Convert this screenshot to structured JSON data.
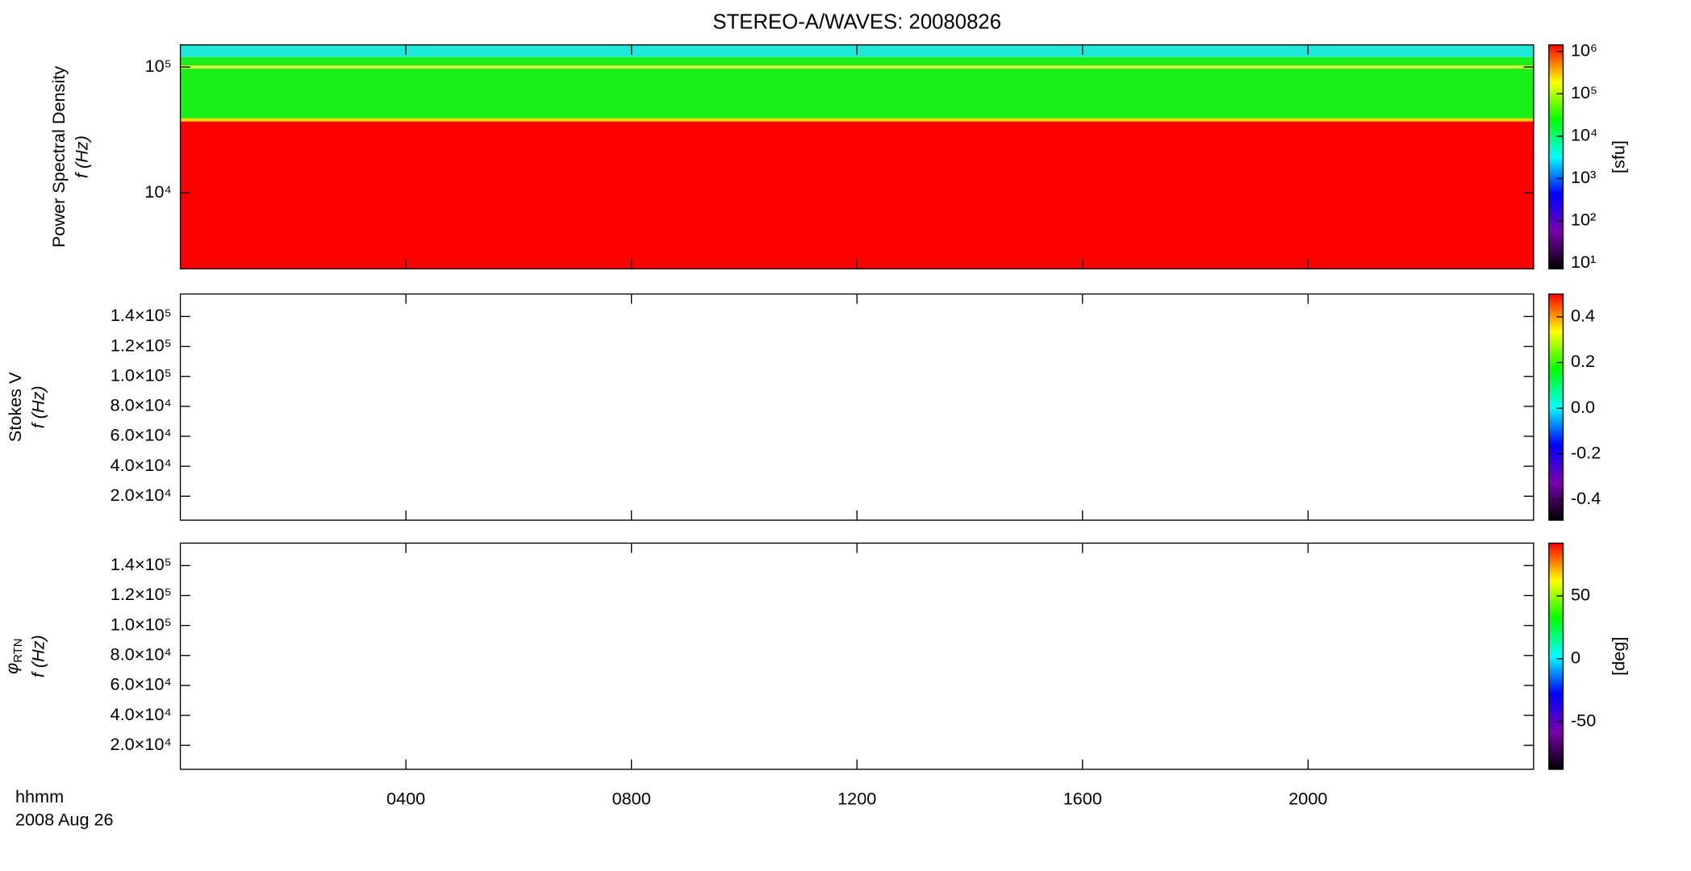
{
  "chart_data": [
    {
      "type": "spectrogram",
      "title": "STEREO-A/WAVES: 20080826",
      "ylabel": [
        "Power Spectral Density",
        "f (Hz)"
      ],
      "ylog": true,
      "ylim": [
        2500,
        150000
      ],
      "yticks": [
        {
          "value": 10000,
          "label": "10⁴"
        },
        {
          "value": 100000,
          "label": "10⁵"
        }
      ],
      "bands": [
        {
          "from": 2500,
          "to": 38000,
          "color": "#ff0000"
        },
        {
          "from": 38000,
          "to": 120000,
          "color": "#18f018"
        },
        {
          "from": 120000,
          "to": 150000,
          "color": "#1ee8d8"
        }
      ],
      "lines": [
        {
          "value": 100000,
          "color": "#d8f040"
        },
        {
          "value": 38000,
          "color": "#ffd200"
        }
      ],
      "colorbar": {
        "label": "[sfu]",
        "log": true,
        "lim": [
          7.4,
          1430000
        ],
        "ticks": [
          {
            "value": 10,
            "label": "10¹"
          },
          {
            "value": 100,
            "label": "10²"
          },
          {
            "value": 1000,
            "label": "10³"
          },
          {
            "value": 10000,
            "label": "10⁴"
          },
          {
            "value": 100000,
            "label": "10⁵"
          },
          {
            "value": 1000000,
            "label": "10⁶"
          }
        ],
        "colors": [
          "#000000",
          "#7a00b0",
          "#0000ff",
          "#00ffff",
          "#00ff00",
          "#ffff00",
          "#ff0000"
        ]
      }
    },
    {
      "type": "spectrogram",
      "ylabel": [
        "Stokes V",
        "f (Hz)"
      ],
      "ylog": false,
      "ylim": [
        4000,
        155000
      ],
      "yticks": [
        {
          "value": 20000,
          "label": "2.0×10⁴"
        },
        {
          "value": 40000,
          "label": "4.0×10⁴"
        },
        {
          "value": 60000,
          "label": "6.0×10⁴"
        },
        {
          "value": 80000,
          "label": "8.0×10⁴"
        },
        {
          "value": 100000,
          "label": "1.0×10⁵"
        },
        {
          "value": 120000,
          "label": "1.2×10⁵"
        },
        {
          "value": 140000,
          "label": "1.4×10⁵"
        }
      ],
      "colorbar": {
        "log": false,
        "lim": [
          -0.49,
          0.5
        ],
        "ticks": [
          -0.4,
          -0.2,
          {
            "value": 0,
            "label": "0.0"
          },
          0.2,
          0.4
        ],
        "colors": [
          "#000000",
          "#7a00b0",
          "#0000ff",
          "#00ffff",
          "#00ff00",
          "#ffff00",
          "#ff0000"
        ]
      }
    },
    {
      "type": "spectrogram",
      "ylabel_symbol": "φ",
      "ylabel_subscript": "RTN",
      "ylabel": [
        "f (Hz)"
      ],
      "ylog": false,
      "ylim": [
        4000,
        155000
      ],
      "yticks": [
        {
          "value": 20000,
          "label": "2.0×10⁴"
        },
        {
          "value": 40000,
          "label": "4.0×10⁴"
        },
        {
          "value": 60000,
          "label": "6.0×10⁴"
        },
        {
          "value": 80000,
          "label": "8.0×10⁴"
        },
        {
          "value": 100000,
          "label": "1.0×10⁵"
        },
        {
          "value": 120000,
          "label": "1.2×10⁵"
        },
        {
          "value": 140000,
          "label": "1.4×10⁵"
        }
      ],
      "colorbar": {
        "label": "[deg]",
        "log": false,
        "lim": [
          -88,
          92
        ],
        "ticks": [
          -50,
          0,
          50
        ],
        "colors": [
          "#000000",
          "#7a00b0",
          "#0000ff",
          "#00ffff",
          "#00ff00",
          "#ffff00",
          "#ff0000"
        ]
      },
      "xlim": [
        0,
        24
      ],
      "xticks": [
        {
          "value": 4,
          "label": "0400"
        },
        {
          "value": 8,
          "label": "0800"
        },
        {
          "value": 12,
          "label": "1200"
        },
        {
          "value": 16,
          "label": "1600"
        },
        {
          "value": 20,
          "label": "2000"
        }
      ],
      "xlabel": "hhmm",
      "date": "2008 Aug 26"
    }
  ]
}
